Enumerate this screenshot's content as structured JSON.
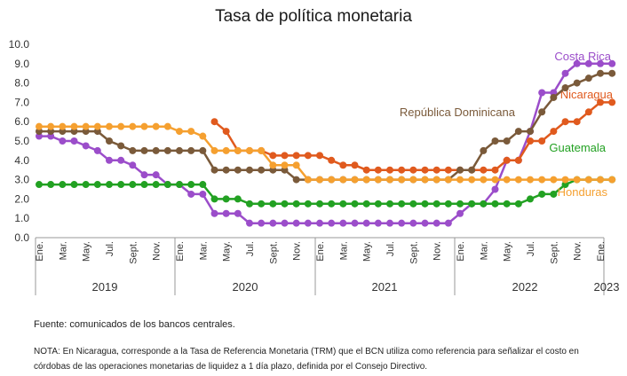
{
  "chart_data": {
    "type": "line",
    "title": "Tasa de política monetaria",
    "ylim": [
      0,
      10
    ],
    "yticks": [
      "0.0",
      "1.0",
      "2.0",
      "3.0",
      "4.0",
      "5.0",
      "6.0",
      "7.0",
      "8.0",
      "9.0",
      "10.0"
    ],
    "month_labels": [
      "Ene.",
      "Mar.",
      "May.",
      "Jul.",
      "Sept.",
      "Nov.",
      "Ene.",
      "Mar.",
      "May.",
      "Jul.",
      "Sept.",
      "Nov.",
      "Ene.",
      "Mar.",
      "May.",
      "Jul.",
      "Sept.",
      "Nov.",
      "Ene.",
      "Mar.",
      "May.",
      "Jul.",
      "Sept.",
      "Nov.",
      "Ene."
    ],
    "year_labels": [
      "2019",
      "2020",
      "2021",
      "2022",
      "2023"
    ],
    "series": [
      {
        "name": "Costa Rica",
        "color": "#9b4dca",
        "values": [
          5.25,
          5.25,
          5.0,
          5.0,
          4.75,
          4.5,
          4.0,
          4.0,
          3.75,
          3.25,
          3.25,
          2.75,
          2.75,
          2.25,
          2.25,
          1.25,
          1.25,
          1.25,
          0.75,
          0.75,
          0.75,
          0.75,
          0.75,
          0.75,
          0.75,
          0.75,
          0.75,
          0.75,
          0.75,
          0.75,
          0.75,
          0.75,
          0.75,
          0.75,
          0.75,
          0.75,
          1.25,
          1.75,
          1.75,
          2.5,
          4.0,
          4.0,
          5.5,
          7.5,
          7.5,
          8.5,
          9.0,
          9.0,
          9.0,
          9.0
        ]
      },
      {
        "name": "Nicaragua",
        "color": "#e05a1e",
        "values": [
          null,
          null,
          null,
          null,
          null,
          null,
          null,
          null,
          null,
          null,
          null,
          null,
          null,
          null,
          null,
          6.0,
          5.5,
          4.5,
          4.5,
          4.5,
          4.25,
          4.25,
          4.25,
          4.25,
          4.25,
          4.0,
          3.75,
          3.75,
          3.5,
          3.5,
          3.5,
          3.5,
          3.5,
          3.5,
          3.5,
          3.5,
          3.5,
          3.5,
          3.5,
          3.5,
          4.0,
          4.0,
          5.0,
          5.0,
          5.5,
          6.0,
          6.0,
          6.5,
          7.0,
          7.0
        ]
      },
      {
        "name": "República Dominicana",
        "color": "#7a5a3a",
        "values": [
          5.5,
          5.5,
          5.5,
          5.5,
          5.5,
          5.5,
          5.0,
          4.75,
          4.5,
          4.5,
          4.5,
          4.5,
          4.5,
          4.5,
          4.5,
          3.5,
          3.5,
          3.5,
          3.5,
          3.5,
          3.5,
          3.5,
          3.0,
          3.0,
          3.0,
          3.0,
          3.0,
          3.0,
          3.0,
          3.0,
          3.0,
          3.0,
          3.0,
          3.0,
          3.0,
          3.0,
          3.5,
          3.5,
          4.5,
          5.0,
          5.0,
          5.5,
          5.5,
          6.5,
          7.25,
          7.75,
          8.0,
          8.25,
          8.5,
          8.5
        ]
      },
      {
        "name": "Guatemala",
        "color": "#22a122",
        "values": [
          2.75,
          2.75,
          2.75,
          2.75,
          2.75,
          2.75,
          2.75,
          2.75,
          2.75,
          2.75,
          2.75,
          2.75,
          2.75,
          2.75,
          2.75,
          2.0,
          2.0,
          2.0,
          1.75,
          1.75,
          1.75,
          1.75,
          1.75,
          1.75,
          1.75,
          1.75,
          1.75,
          1.75,
          1.75,
          1.75,
          1.75,
          1.75,
          1.75,
          1.75,
          1.75,
          1.75,
          1.75,
          1.75,
          1.75,
          1.75,
          1.75,
          1.75,
          2.0,
          2.25,
          2.25,
          2.75,
          3.0,
          3.0,
          3.0,
          3.0
        ]
      },
      {
        "name": "Honduras",
        "color": "#f5a030",
        "values": [
          5.75,
          5.75,
          5.75,
          5.75,
          5.75,
          5.75,
          5.75,
          5.75,
          5.75,
          5.75,
          5.75,
          5.75,
          5.5,
          5.5,
          5.25,
          4.5,
          4.5,
          4.5,
          4.5,
          4.5,
          3.75,
          3.75,
          3.75,
          3.0,
          3.0,
          3.0,
          3.0,
          3.0,
          3.0,
          3.0,
          3.0,
          3.0,
          3.0,
          3.0,
          3.0,
          3.0,
          3.0,
          3.0,
          3.0,
          3.0,
          3.0,
          3.0,
          3.0,
          3.0,
          3.0,
          3.0,
          3.0,
          3.0,
          3.0,
          3.0
        ]
      }
    ]
  },
  "footer": {
    "source": "Fuente: comunicados de los bancos centrales.",
    "note": "NOTA: En Nicaragua, corresponde a la Tasa de Referencia Monetaria (TRM) que el BCN utiliza como referencia para señalizar el costo en córdobas de las operaciones monetarias de liquidez a 1 día plazo, definida por el Consejo Directivo."
  }
}
